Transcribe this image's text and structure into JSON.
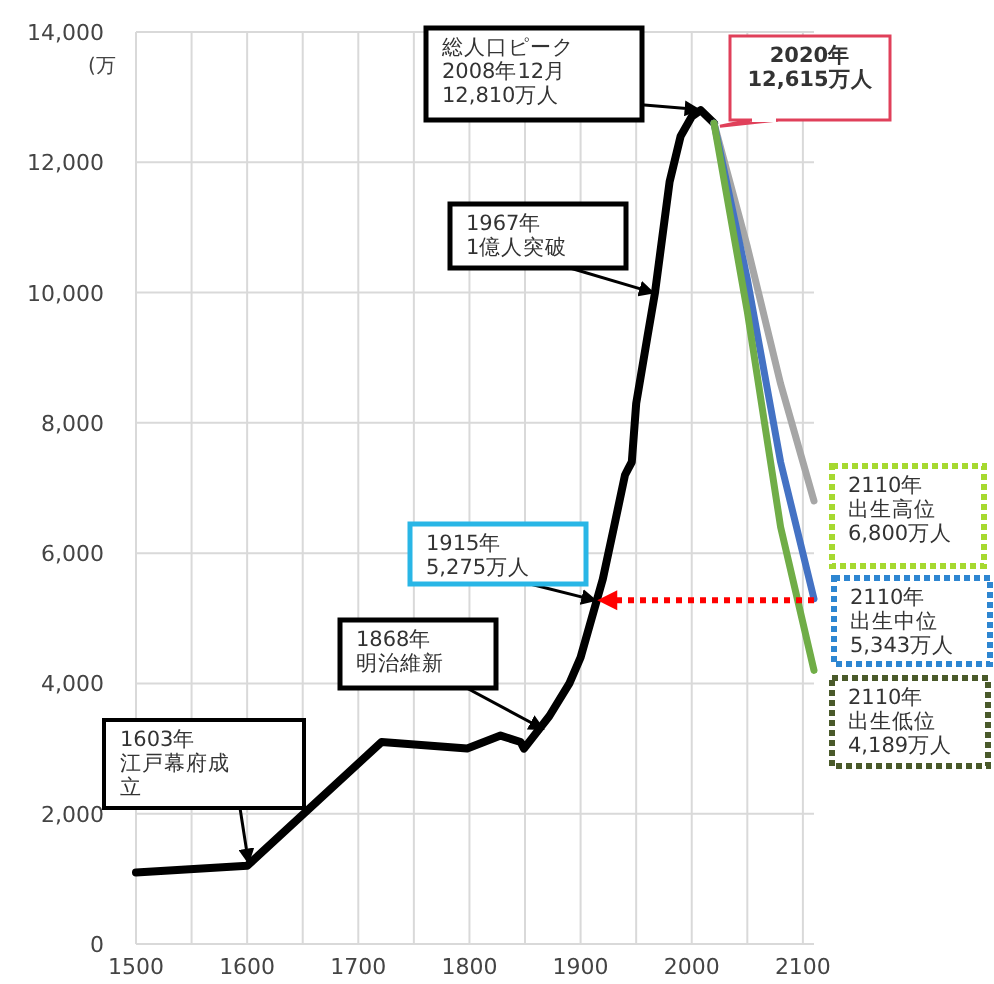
{
  "chart_data": {
    "type": "line",
    "ylabel": "(万",
    "xlim": [
      1500,
      2110
    ],
    "ylim": [
      0,
      14000
    ],
    "xticks": [
      1500,
      {
        "value": 1550,
        "label": null
      },
      1600,
      {
        "value": 1650,
        "label": null
      },
      1700,
      {
        "value": 1750,
        "label": null
      },
      1800,
      {
        "value": 1850,
        "label": null
      },
      1900,
      {
        "value": 1950,
        "label": null
      },
      2000,
      {
        "value": 2050,
        "label": null
      },
      2100
    ],
    "yticks": [
      0,
      {
        "value": 2000,
        "label": "2,000"
      },
      {
        "value": 4000,
        "label": "4,000"
      },
      {
        "value": 6000,
        "label": "6,000"
      },
      {
        "value": 8000,
        "label": "8,000"
      },
      {
        "value": 10000,
        "label": "10,000"
      },
      {
        "value": 12000,
        "label": "12,000"
      },
      {
        "value": 14000,
        "label": "14,000"
      }
    ],
    "grid": true,
    "marker": "none",
    "series": [
      {
        "color": "#000000",
        "x": [
          1500,
          1600,
          1721,
          1798,
          1828,
          1846,
          1849,
          1872,
          1890,
          1900,
          1915,
          1920,
          1930,
          1940,
          1943,
          1946,
          1950,
          1960,
          1967,
          1980,
          1990,
          2000,
          2008,
          2020
        ],
        "values": [
          1100,
          1200,
          3100,
          3000,
          3200,
          3100,
          3000,
          3500,
          4000,
          4400,
          5300,
          5600,
          6400,
          7200,
          7300,
          7400,
          8300,
          9300,
          10000,
          11700,
          12400,
          12700,
          12800,
          12600
        ]
      },
      {
        "color": "#a6a6a6",
        "x": [
          2020,
          2050,
          2080,
          2110
        ],
        "values": [
          12600,
          10700,
          8600,
          6800
        ]
      },
      {
        "color": "#4472c4",
        "x": [
          2020,
          2050,
          2080,
          2110
        ],
        "values": [
          12600,
          10200,
          7400,
          5300
        ]
      },
      {
        "color": "#70ad47",
        "x": [
          2020,
          2050,
          2080,
          2110
        ],
        "values": [
          12600,
          9700,
          6400,
          4200
        ]
      }
    ],
    "annotations": [
      {
        "text": "総人口ピーク\n2008年12月\n12,810万人",
        "x": 2008,
        "y": 12810
      },
      {
        "text": "2020年\n12,615万人",
        "x": 2020,
        "y": 12615
      },
      {
        "text": "1967年\n1億人突破",
        "x": 1967,
        "y": 10000
      },
      {
        "text": "1915年\n5,275万人",
        "x": 1915,
        "y": 5275
      },
      {
        "text": "1868年明治維新",
        "x": 1868,
        "y": 3300
      },
      {
        "text": "1603年江戸幕府成立",
        "x": 1603,
        "y": 1250
      },
      {
        "text": "2110年出生高位6,800万人",
        "x": 2110,
        "y": 6800
      },
      {
        "text": "2110年出生中位5,343万人",
        "x": 2110,
        "y": 5343
      },
      {
        "text": "2110年出生低位4,189万人",
        "x": 2110,
        "y": 4189
      }
    ]
  }
}
